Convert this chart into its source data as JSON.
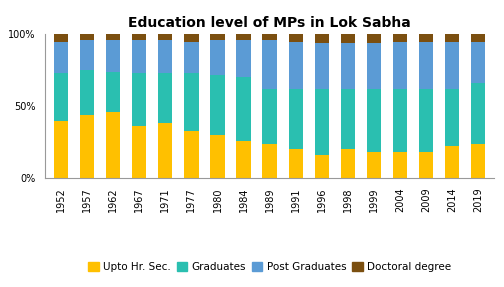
{
  "title": "Education level of MPs in Lok Sabha",
  "years": [
    "1952",
    "1957",
    "1962",
    "1967",
    "1971",
    "1977",
    "1980",
    "1984",
    "1989",
    "1991",
    "1996",
    "1998",
    "1999",
    "2004",
    "2009",
    "2014",
    "2019"
  ],
  "upto_hr_sec": [
    40,
    44,
    46,
    36,
    38,
    33,
    30,
    26,
    24,
    20,
    16,
    20,
    18,
    18,
    18,
    22,
    24
  ],
  "graduates": [
    33,
    31,
    28,
    37,
    35,
    40,
    42,
    44,
    38,
    42,
    46,
    42,
    44,
    44,
    44,
    40,
    42
  ],
  "post_graduates": [
    22,
    21,
    22,
    23,
    23,
    22,
    24,
    26,
    34,
    33,
    32,
    32,
    32,
    33,
    33,
    33,
    29
  ],
  "doctoral": [
    5,
    4,
    4,
    4,
    4,
    5,
    4,
    4,
    4,
    5,
    6,
    6,
    6,
    5,
    5,
    5,
    5
  ],
  "colors": {
    "upto_hr_sec": "#FFC000",
    "graduates": "#2ABFB0",
    "post_graduates": "#5B9BD5",
    "doctoral": "#7B4F10"
  },
  "legend_labels": [
    "Upto Hr. Sec.",
    "Graduates",
    "Post Graduates",
    "Doctoral degree"
  ],
  "ylim": [
    0,
    100
  ],
  "yticks": [
    0,
    50,
    100
  ],
  "ytick_labels": [
    "0%",
    "50%",
    "100%"
  ],
  "background_color": "#ffffff",
  "bar_width": 0.55,
  "title_fontsize": 10,
  "tick_fontsize": 7,
  "legend_fontsize": 7.5
}
